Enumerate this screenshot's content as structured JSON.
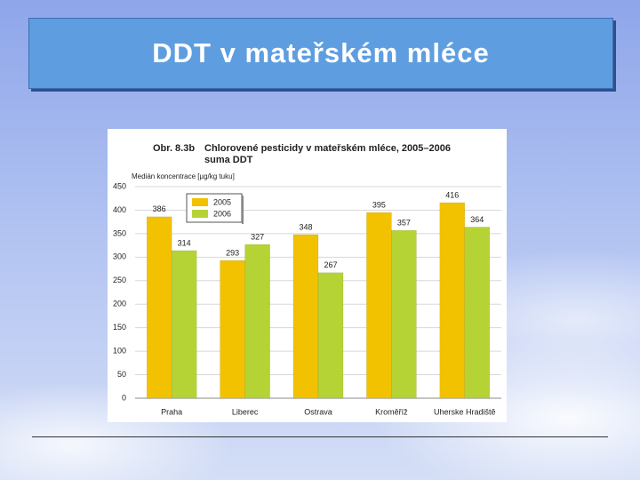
{
  "slide": {
    "title": "DDT v mateřském mléce"
  },
  "chart_data": {
    "type": "bar",
    "figure_label": "Obr. 8.3b",
    "title": "Chlorovené pesticidy v mateřském mléce, 2005–2006",
    "subtitle": "suma DDT",
    "y_label": "Medián koncentrace [µg/kg tuku]",
    "categories": [
      "Praha",
      "Liberec",
      "Ostrava",
      "Kroměříž",
      "Uherske Hradiště"
    ],
    "series": [
      {
        "name": "2005",
        "color": "#f2c200",
        "values": [
          386,
          293,
          348,
          395,
          416
        ]
      },
      {
        "name": "2006",
        "color": "#b5d334",
        "values": [
          314,
          327,
          267,
          357,
          364
        ]
      }
    ],
    "ylim": [
      0,
      450
    ],
    "yticks": [
      0,
      50,
      100,
      150,
      200,
      250,
      300,
      350,
      400,
      450
    ],
    "grid": true,
    "legend": "top-left"
  }
}
